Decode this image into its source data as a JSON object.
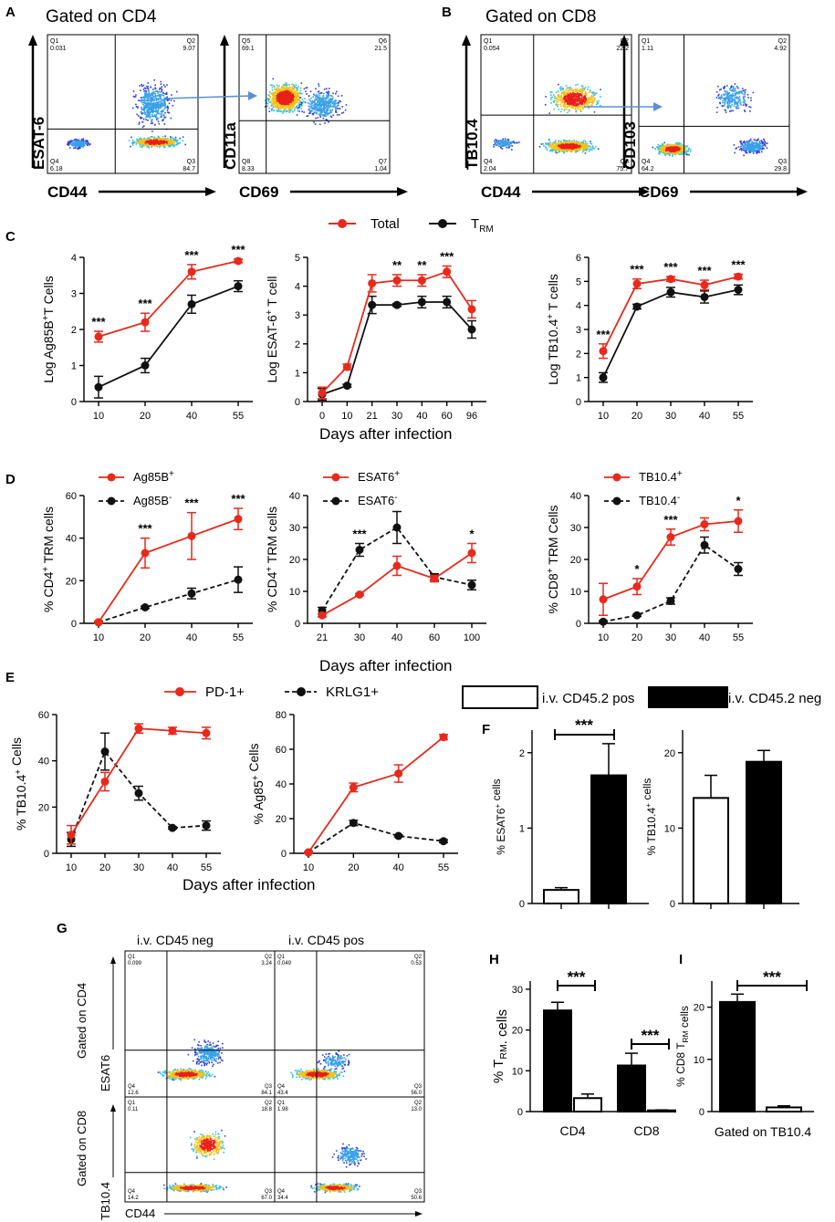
{
  "colors": {
    "total": "#e8291c",
    "trm": "#111111",
    "flow_line": "#5b8fd6"
  },
  "panel_labels": [
    "A",
    "B",
    "C",
    "D",
    "E",
    "F",
    "G",
    "H",
    "I"
  ],
  "flow": {
    "A": {
      "title": "Gated on CD4",
      "plot1": {
        "ylabel": "ESAT-6",
        "xlabel": "CD44",
        "q": [
          "Q1\n0.031",
          "Q2\n9.07",
          "Q4\n6.18",
          "Q3\n84.7"
        ]
      },
      "plot2": {
        "ylabel": "CD11a",
        "xlabel": "CD69",
        "q": [
          "Q5\n69.1",
          "Q6\n21.5",
          "Q8\n8.33",
          "Q7\n1.04"
        ]
      }
    },
    "B": {
      "title": "Gated on CD8",
      "plot1": {
        "ylabel": "TB10.4",
        "xlabel": "CD44",
        "q": [
          "Q1\n0.054",
          "Q2\n22.2",
          "Q4\n2.04",
          "Q3\n75.7"
        ]
      },
      "plot2": {
        "ylabel": "CD103",
        "xlabel": "CD69",
        "q": [
          "Q1\n1.11",
          "Q2\n4.92",
          "Q4\n64.2",
          "Q3\n29.8"
        ]
      }
    },
    "G": {
      "col1": "i.v. CD45 neg",
      "col2": "i.v. CD45 pos",
      "row1_label": "Gated on CD4",
      "row1_marker": "ESAT6",
      "row2_label": "Gated on CD8",
      "row2_marker": "TB10.4",
      "xlabel": "CD44",
      "p11": [
        "Q1\n0.099",
        "Q2\n3.24",
        "Q4\n12.6",
        "Q3\n84.1"
      ],
      "p12": [
        "Q1\n0.049",
        "Q2\n0.53",
        "Q4\n43.4",
        "Q3\n56.0"
      ],
      "p21": [
        "Q1\n0.11",
        "Q2\n18.8",
        "Q4\n14.2",
        "Q3\n67.0"
      ],
      "p22": [
        "Q1\n1.98",
        "Q2\n13.0",
        "Q4\n34.4",
        "Q3\n50.6"
      ]
    }
  },
  "legend_C": {
    "total": "Total",
    "trm": "TRM"
  },
  "chart_data": [
    {
      "id": "C1",
      "type": "line",
      "ylabel": "Log Ag85B+T Cells",
      "x": [
        10,
        20,
        40,
        55
      ],
      "ylim": [
        0,
        4
      ],
      "yticks": [
        0,
        1,
        2,
        3,
        4
      ],
      "series": [
        {
          "name": "Total",
          "values": [
            1.8,
            2.2,
            3.6,
            3.9
          ],
          "err": [
            0.15,
            0.25,
            0.2,
            0.05
          ]
        },
        {
          "name": "TRM",
          "values": [
            0.4,
            1.0,
            2.7,
            3.2
          ],
          "err": [
            0.3,
            0.2,
            0.25,
            0.15
          ]
        }
      ],
      "stars": [
        "***",
        "***",
        "***",
        "***"
      ]
    },
    {
      "id": "C2",
      "type": "line",
      "ylabel": "Log ESAT-6+ T cell",
      "x": [
        0,
        10,
        21,
        30,
        40,
        60,
        96
      ],
      "ylim": [
        0,
        5
      ],
      "yticks": [
        0,
        1,
        2,
        3,
        4,
        5
      ],
      "series": [
        {
          "name": "Total",
          "values": [
            0.3,
            1.2,
            4.1,
            4.2,
            4.2,
            4.5,
            3.2
          ],
          "err": [
            0.2,
            0.1,
            0.3,
            0.2,
            0.2,
            0.2,
            0.3
          ]
        },
        {
          "name": "TRM",
          "values": [
            0.25,
            0.55,
            3.35,
            3.35,
            3.45,
            3.45,
            2.5
          ],
          "err": [
            0.2,
            0.05,
            0.3,
            0.05,
            0.2,
            0.2,
            0.3
          ]
        }
      ],
      "stars": [
        "",
        "",
        "",
        "**",
        "**",
        "***",
        ""
      ]
    },
    {
      "id": "C3",
      "type": "line",
      "ylabel": "Log TB10.4+ T cells",
      "x": [
        10,
        20,
        30,
        40,
        55
      ],
      "ylim": [
        0,
        6
      ],
      "yticks": [
        0,
        1,
        2,
        3,
        4,
        5,
        6
      ],
      "series": [
        {
          "name": "Total",
          "values": [
            2.1,
            4.9,
            5.1,
            4.85,
            5.2
          ],
          "err": [
            0.3,
            0.2,
            0.1,
            0.2,
            0.1
          ]
        },
        {
          "name": "TRM",
          "values": [
            1.0,
            3.95,
            4.55,
            4.35,
            4.65
          ],
          "err": [
            0.2,
            0.1,
            0.2,
            0.25,
            0.2
          ]
        }
      ],
      "stars": [
        "***",
        "***",
        "***",
        "***",
        "***"
      ]
    },
    {
      "id": "D1",
      "type": "line",
      "ylabel": "% CD4+ TRM cells",
      "x": [
        10,
        20,
        40,
        55
      ],
      "ylim": [
        0,
        60
      ],
      "yticks": [
        0,
        20,
        40,
        60
      ],
      "series": [
        {
          "name": "Ag85B+",
          "values": [
            0.5,
            33,
            41,
            49
          ],
          "err": [
            0.5,
            7,
            11,
            5
          ]
        },
        {
          "name": "Ag85B-",
          "values": [
            0.5,
            7.5,
            14,
            20.5
          ],
          "err": [
            0.3,
            0.5,
            2.5,
            6
          ]
        }
      ],
      "stars": [
        "",
        "***",
        "***",
        "***"
      ]
    },
    {
      "id": "D2",
      "type": "line",
      "ylabel": "% CD4+ TRM cells",
      "x": [
        21,
        30,
        40,
        60,
        100
      ],
      "ylim": [
        0,
        40
      ],
      "yticks": [
        0,
        10,
        20,
        30,
        40
      ],
      "series": [
        {
          "name": "ESAT6+",
          "values": [
            2.5,
            9,
            18,
            14,
            22
          ],
          "err": [
            0.5,
            0.3,
            3,
            1,
            3
          ]
        },
        {
          "name": "ESAT6 -",
          "values": [
            4,
            23,
            30,
            14.5,
            12
          ],
          "err": [
            1,
            2,
            5,
            1,
            1.5
          ]
        }
      ],
      "stars": [
        "",
        "***",
        "",
        "",
        "*"
      ]
    },
    {
      "id": "D3",
      "type": "line",
      "ylabel": "% CD8+ TRM Cells",
      "x": [
        10,
        20,
        30,
        40,
        55
      ],
      "ylim": [
        0,
        40
      ],
      "yticks": [
        0,
        10,
        20,
        30,
        40
      ],
      "series": [
        {
          "name": "TB10.4+",
          "values": [
            7.5,
            11.5,
            27,
            31,
            32
          ],
          "err": [
            5,
            2.5,
            2.5,
            2,
            3.5
          ]
        },
        {
          "name": "TB10.4-",
          "values": [
            0.5,
            2.5,
            7,
            24.5,
            17
          ],
          "err": [
            0.3,
            0.3,
            1,
            2.5,
            2
          ]
        }
      ],
      "stars": [
        "",
        "*",
        "***",
        "",
        "*"
      ]
    },
    {
      "id": "E1",
      "type": "line",
      "ylabel": "% TB10.4+ Cells",
      "x": [
        10,
        20,
        30,
        40,
        55
      ],
      "ylim": [
        0,
        60
      ],
      "yticks": [
        0,
        20,
        40,
        60
      ],
      "series": [
        {
          "name": "PD-1+",
          "values": [
            8,
            31,
            54,
            53,
            52
          ],
          "err": [
            4,
            4,
            2,
            1.5,
            2.5
          ]
        },
        {
          "name": "KRLG1+",
          "values": [
            6,
            44,
            26,
            11,
            12
          ],
          "err": [
            3,
            8,
            3,
            0.5,
            2
          ]
        }
      ],
      "stars": []
    },
    {
      "id": "E2",
      "type": "line",
      "ylabel": "% Ag85+ Cells",
      "x": [
        10,
        20,
        40,
        55
      ],
      "ylim": [
        0,
        80
      ],
      "yticks": [
        0,
        20,
        40,
        60,
        80
      ],
      "series": [
        {
          "name": "PD-1+",
          "values": [
            0.5,
            38,
            46,
            67
          ],
          "err": [
            0.3,
            2.5,
            5,
            1.5
          ]
        },
        {
          "name": "KRLG1+",
          "values": [
            0.5,
            17.5,
            10,
            7
          ],
          "err": [
            0.3,
            1.5,
            0.5,
            0.8
          ]
        }
      ],
      "stars": []
    },
    {
      "id": "F1",
      "type": "bar",
      "ylabel": "% ESAT6+ cells",
      "categories": [
        "i.v. CD45.2 pos",
        "i.v. CD45.2 neg"
      ],
      "values": [
        0.18,
        1.7
      ],
      "err": [
        0.03,
        0.42
      ],
      "ylim": [
        0,
        2.3
      ],
      "yticks": [
        0,
        1,
        2
      ],
      "sig": "***"
    },
    {
      "id": "F2",
      "type": "bar",
      "ylabel": "% TB10.4+ cells",
      "categories": [
        "i.v. CD45.2 pos",
        "i.v. CD45.2 neg"
      ],
      "values": [
        14,
        18.8
      ],
      "err": [
        3,
        1.5
      ],
      "ylim": [
        0,
        23
      ],
      "yticks": [
        0,
        10,
        20
      ],
      "sig": ""
    },
    {
      "id": "H",
      "type": "bar",
      "ylabel": "% TRM. cells",
      "categories": [
        "CD4",
        "CD8"
      ],
      "series": [
        {
          "name": "i.v. CD45 neg",
          "values": [
            24.8,
            11.3
          ],
          "err": [
            2,
            3
          ]
        },
        {
          "name": "i.v. CD45 pos",
          "values": [
            3.3,
            0.3
          ],
          "err": [
            1,
            0.1
          ]
        }
      ],
      "ylim": [
        0,
        32
      ],
      "yticks": [
        0,
        10,
        20,
        30
      ],
      "sig": [
        "***",
        "***"
      ]
    },
    {
      "id": "I",
      "type": "bar",
      "ylabel": "% CD8 TRM cells",
      "xlabel": "Gated on TB10.4",
      "categories": [
        "i.v. CD45 neg",
        "i.v. CD45 pos"
      ],
      "values": [
        21,
        0.8
      ],
      "err": [
        1.5,
        0.3
      ],
      "ylim": [
        0,
        25
      ],
      "yticks": [
        0,
        10,
        20
      ],
      "sig": "***"
    }
  ],
  "x_titles": {
    "C": "Days after infection",
    "D": "Days after infection",
    "E": "Days after infection"
  },
  "legend_F": {
    "pos": "i.v. CD45.2 pos",
    "neg": "i.v. CD45.2 neg"
  }
}
